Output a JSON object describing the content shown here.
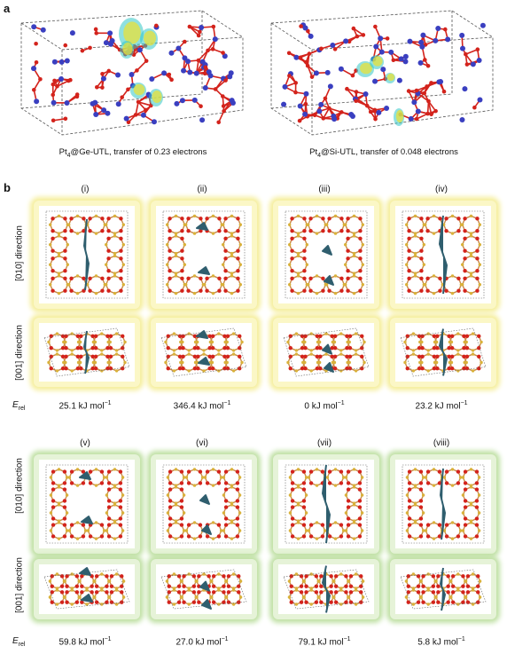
{
  "panel_a": {
    "letter": "a",
    "captions": [
      {
        "prefix": "Pt",
        "sub": "4",
        "rest": "@Ge-UTL, transfer of 0.23 electrons"
      },
      {
        "prefix": "Pt",
        "sub": "4",
        "rest": "@Si-UTL, transfer of 0.048 electrons"
      }
    ]
  },
  "panel_b": {
    "letter": "b",
    "direction_010": "[010] direction",
    "direction_001": "[001] direction",
    "erel_label_main": "E",
    "erel_label_sub": "rel",
    "groups": [
      {
        "color": "yellow",
        "configs": [
          {
            "label": "(i)",
            "energy": "25.1 kJ mol",
            "unit_sup": "−1"
          },
          {
            "label": "(ii)",
            "energy": "346.4 kJ mol",
            "unit_sup": "−1"
          },
          {
            "label": "(iii)",
            "energy": "0 kJ mol",
            "unit_sup": "−1"
          },
          {
            "label": "(iv)",
            "energy": "23.2 kJ mol",
            "unit_sup": "−1"
          }
        ]
      },
      {
        "color": "green",
        "configs": [
          {
            "label": "(v)",
            "energy": "59.8 kJ mol",
            "unit_sup": "−1"
          },
          {
            "label": "(vi)",
            "energy": "27.0 kJ mol",
            "unit_sup": "−1"
          },
          {
            "label": "(vii)",
            "energy": "79.1 kJ mol",
            "unit_sup": "−1"
          },
          {
            "label": "(viii)",
            "energy": "5.8 kJ mol",
            "unit_sup": "−1"
          }
        ]
      }
    ]
  },
  "colors": {
    "oxygen": "#d3231c",
    "silicon": "#d9b23a",
    "bond": "#c98a4a",
    "pt_cluster": "#2f5e6e",
    "si_atom_a": "#3a3fc0",
    "density_yellow": "#e8e23a",
    "density_cyan": "#33c6c6"
  }
}
